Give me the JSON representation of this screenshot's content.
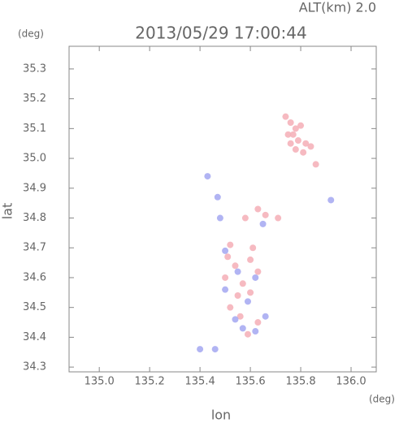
{
  "chart_data": {
    "type": "scatter",
    "title": "2013/05/29 17:00:44",
    "annotation": "ALT(km) 2.0",
    "x_label": "lon",
    "y_label": "lat",
    "x_unit": "(deg)",
    "y_unit": "(deg)",
    "xlim": [
      134.88,
      136.1
    ],
    "ylim": [
      34.284,
      35.376
    ],
    "xticks": [
      {
        "value": 135.0,
        "label": "135.0"
      },
      135.2,
      135.4,
      135.6,
      135.8,
      {
        "value": 136.0,
        "label": "136.0"
      }
    ],
    "yticks": [
      34.3,
      34.4,
      34.5,
      34.6,
      34.7,
      34.8,
      34.9,
      {
        "value": 35.0,
        "label": "35.0"
      },
      35.1,
      35.2,
      35.3
    ],
    "series": [
      {
        "color": "#f5b3ba",
        "x": [
          135.74,
          135.76,
          135.78,
          135.75,
          135.79,
          135.82,
          135.78,
          135.81,
          135.84,
          135.77,
          135.8,
          135.76,
          135.86,
          135.58,
          135.63,
          135.66,
          135.71,
          135.52,
          135.51,
          135.54,
          135.6,
          135.63,
          135.57,
          135.55,
          135.6,
          135.52,
          135.56,
          135.63,
          135.59,
          135.61,
          135.5
        ],
        "values": [
          35.14,
          35.12,
          35.1,
          35.08,
          35.06,
          35.05,
          35.03,
          35.02,
          35.04,
          35.08,
          35.11,
          35.05,
          34.98,
          34.8,
          34.83,
          34.81,
          34.8,
          34.71,
          34.67,
          34.64,
          34.66,
          34.62,
          34.58,
          34.54,
          34.55,
          34.5,
          34.47,
          34.45,
          34.41,
          34.7,
          34.6
        ]
      },
      {
        "color": "#a8acf2",
        "x": [
          135.43,
          135.47,
          135.48,
          135.5,
          135.55,
          135.62,
          135.59,
          135.5,
          135.54,
          135.57,
          135.62,
          135.46,
          135.4,
          135.92,
          135.65,
          135.66
        ],
        "values": [
          34.94,
          34.87,
          34.8,
          34.69,
          34.62,
          34.6,
          34.52,
          34.56,
          34.46,
          34.43,
          34.42,
          34.36,
          34.36,
          34.86,
          34.78,
          34.47
        ]
      }
    ]
  }
}
